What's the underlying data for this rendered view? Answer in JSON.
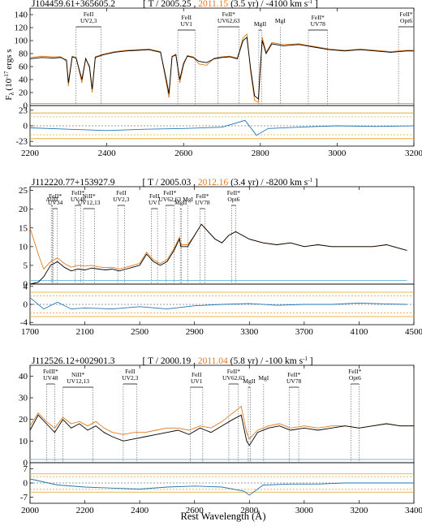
{
  "colors": {
    "spectrum_old": "#000000",
    "spectrum_new": "#e07a1f",
    "error": "#4aa8d8",
    "residual": "#1f77b4",
    "sigma": "#e0a020",
    "line_marker": "#555555"
  },
  "figure": {
    "ylabel": "F",
    "ylabel_sub": "λ",
    "ylabel_units": "(10",
    "ylabel_exp": "-17",
    "ylabel_rest": "ergs s",
    "xlabel": "Rest Wavelength (Å)"
  },
  "chart_data": [
    {
      "type": "line",
      "object": "J104459.61+365605.2",
      "title_prefix": "[ T / ",
      "epoch1": "2005.25",
      "epoch_sep": " , ",
      "epoch2": "2011.15",
      "title_suffix": " (3.5 yr) / -4100 km s",
      "title_sup": "-1",
      "title_end": " ]",
      "xlim": [
        2200,
        3200
      ],
      "xticks": [
        "2200",
        "2400",
        "2600",
        "2800",
        "3000",
        "3200"
      ],
      "ylim": [
        0,
        150
      ],
      "yticks": [
        "0",
        "20",
        "40",
        "60",
        "80",
        "100",
        "120",
        "140"
      ],
      "resid_ylim": [
        -30,
        30
      ],
      "resid_yticks": [
        "-23",
        "0",
        "23"
      ],
      "series": [
        {
          "x": [
            2200,
            2230,
            2260,
            2280,
            2295,
            2300,
            2310,
            2320,
            2335,
            2345,
            2355,
            2362,
            2370,
            2390,
            2420,
            2450,
            2480,
            2510,
            2540,
            2555,
            2562,
            2570,
            2580,
            2590,
            2600,
            2610,
            2625,
            2640,
            2660,
            2680,
            2700,
            2720,
            2740,
            2755,
            2765,
            2775,
            2785,
            2795,
            2800,
            2805,
            2815,
            2830,
            2860,
            2900,
            2940,
            2980,
            3020,
            3060,
            3100,
            3140,
            3180,
            3200
          ],
          "y": [
            72,
            74,
            73,
            74,
            70,
            35,
            75,
            73,
            40,
            72,
            60,
            25,
            74,
            78,
            82,
            84,
            85,
            86,
            82,
            40,
            18,
            75,
            78,
            40,
            65,
            76,
            74,
            68,
            66,
            72,
            74,
            75,
            72,
            100,
            105,
            55,
            15,
            10,
            60,
            100,
            80,
            95,
            92,
            94,
            90,
            86,
            84,
            86,
            84,
            82,
            84,
            84
          ]
        },
        {
          "x": [
            2200,
            2230,
            2260,
            2280,
            2295,
            2300,
            2310,
            2320,
            2335,
            2345,
            2355,
            2362,
            2370,
            2390,
            2420,
            2450,
            2480,
            2510,
            2540,
            2555,
            2562,
            2570,
            2580,
            2590,
            2600,
            2610,
            2625,
            2640,
            2660,
            2680,
            2700,
            2720,
            2740,
            2755,
            2765,
            2775,
            2785,
            2795,
            2800,
            2805,
            2815,
            2830,
            2860,
            2900,
            2940,
            2980,
            3020,
            3060,
            3100,
            3140,
            3180,
            3200
          ],
          "y": [
            74,
            76,
            75,
            75,
            68,
            30,
            76,
            74,
            35,
            73,
            58,
            20,
            75,
            79,
            83,
            85,
            86,
            87,
            83,
            35,
            12,
            76,
            79,
            35,
            62,
            77,
            75,
            64,
            62,
            73,
            75,
            76,
            73,
            104,
            110,
            50,
            8,
            5,
            55,
            105,
            82,
            97,
            94,
            95,
            91,
            87,
            85,
            87,
            85,
            83,
            85,
            85
          ]
        },
        {
          "x": [
            2200,
            3200
          ],
          "y": [
            3,
            3
          ]
        }
      ],
      "residual": {
        "x": [
          2200,
          2300,
          2400,
          2500,
          2600,
          2700,
          2760,
          2790,
          2820,
          2900,
          3000,
          3100,
          3200
        ],
        "y": [
          -3,
          -5,
          -7,
          -5,
          -4,
          -2,
          8,
          -14,
          -4,
          -2,
          0,
          -1,
          0
        ]
      },
      "sigma": 19,
      "lines": [
        {
          "label": "FeII",
          "label2": "UV2,3",
          "x1": 2320,
          "x2": 2385
        },
        {
          "label": "FeII",
          "label2": "UV1",
          "x1": 2585,
          "x2": 2630
        },
        {
          "label": "FeII*",
          "label2": "UV62,63",
          "x1": 2690,
          "x2": 2745
        },
        {
          "label": "MgII",
          "label2": "",
          "x1": 2796,
          "x2": 2803
        },
        {
          "label": "MgI",
          "label2": "",
          "x1": 2852,
          "x2": 2852
        },
        {
          "label": "FeII*",
          "label2": "UV78",
          "x1": 2925,
          "x2": 2975
        },
        {
          "label": "FeII*",
          "label2": "Opt6",
          "x1": 3160,
          "x2": 3200
        }
      ]
    },
    {
      "type": "line",
      "object": "J112220.77+153927.9",
      "title_prefix": "[ T / ",
      "epoch1": "2005.03",
      "epoch_sep": " , ",
      "epoch2": "2012.16",
      "title_suffix": " (3.4 yr) / -8200 km s",
      "title_sup": "-1",
      "title_end": " ]",
      "xlim": [
        1700,
        4500
      ],
      "xticks": [
        "1700",
        "2100",
        "2500",
        "2900",
        "3300",
        "3700",
        "4100",
        "4500"
      ],
      "ylim": [
        0,
        26
      ],
      "yticks": [
        "0",
        "5",
        "10",
        "15",
        "20",
        "25"
      ],
      "resid_ylim": [
        -4.5,
        4.5
      ],
      "resid_yticks": [
        "-4",
        "0",
        "4"
      ],
      "series": [
        {
          "x": [
            1700,
            1760,
            1800,
            1850,
            1900,
            1950,
            2000,
            2050,
            2100,
            2150,
            2200,
            2250,
            2300,
            2350,
            2400,
            2450,
            2500,
            2550,
            2600,
            2650,
            2700,
            2750,
            2790,
            2800,
            2850,
            2900,
            2950,
            3000,
            3050,
            3100,
            3150,
            3200,
            3250,
            3300,
            3400,
            3500,
            3600,
            3700,
            3800,
            3900,
            4000,
            4100,
            4200,
            4300,
            4400,
            4450
          ],
          "y": [
            0,
            0.5,
            2,
            5,
            6,
            4.5,
            3.5,
            4,
            3.8,
            4.3,
            4,
            3.8,
            4,
            3.5,
            4,
            4.5,
            5,
            8,
            6,
            5,
            6,
            9,
            12,
            10,
            10,
            13,
            16,
            14,
            12,
            11,
            13,
            14,
            13,
            12,
            11,
            10.5,
            11,
            10,
            10.5,
            10,
            10,
            10,
            10,
            10.5,
            9.5,
            9
          ]
        },
        {
          "x": [
            1700,
            1760,
            1800,
            1850,
            1900,
            1950,
            2000,
            2050,
            2100,
            2150,
            2200,
            2250,
            2300,
            2350,
            2400,
            2450,
            2500,
            2550,
            2600,
            2650,
            2700,
            2750,
            2790,
            2800,
            2850,
            2900,
            2950,
            3000,
            3050,
            3100,
            3150,
            3200,
            3250,
            3300,
            3400,
            3500,
            3600,
            3700,
            3800,
            3900,
            4000,
            4100,
            4200,
            4300,
            4400,
            4450
          ],
          "y": [
            15,
            8,
            4,
            6,
            7,
            5.5,
            4.5,
            5,
            4.8,
            5,
            4.6,
            4.4,
            4.5,
            4,
            4.5,
            5,
            5.5,
            8.5,
            6.5,
            5.5,
            6.5,
            9.5,
            12.5,
            10.5,
            10.5,
            13,
            16,
            14,
            12,
            11,
            13,
            14,
            13,
            12,
            11,
            10.5,
            11,
            10,
            10.5,
            10,
            10,
            10,
            10,
            10.5,
            9.5,
            9
          ]
        },
        {
          "x": [
            1700,
            4450
          ],
          "y": [
            1,
            1
          ]
        }
      ],
      "residual": {
        "x": [
          1700,
          1800,
          1900,
          2000,
          2100,
          2300,
          2500,
          2700,
          2900,
          3100,
          3300,
          3500,
          3700,
          3900,
          4100,
          4300,
          4450
        ],
        "y": [
          1.5,
          -1,
          0.5,
          -1,
          -0.8,
          -1,
          -0.5,
          -1,
          -0.3,
          0,
          0.2,
          -0.2,
          0,
          0,
          0.3,
          0.1,
          0
        ]
      },
      "sigma": 2.7,
      "lines": [
        {
          "label": "AlIII",
          "label2": "",
          "x1": 1855,
          "x2": 1863
        },
        {
          "label": "FeII*",
          "label2": "UV34",
          "x1": 1868,
          "x2": 1900
        },
        {
          "label": "FeII*",
          "label2": "UV48",
          "x1": 2030,
          "x2": 2070
        },
        {
          "label": "NiII*",
          "label2": "UV12,13",
          "x1": 2090,
          "x2": 2170
        },
        {
          "label": "FeII",
          "label2": "UV2,3",
          "x1": 2340,
          "x2": 2390
        },
        {
          "label": "FeII",
          "label2": "UV1",
          "x1": 2585,
          "x2": 2630
        },
        {
          "label": "FeII*",
          "label2": "UV62,63",
          "x1": 2690,
          "x2": 2750
        },
        {
          "label": "MgII",
          "label2": "",
          "x1": 2796,
          "x2": 2803
        },
        {
          "label": "MgI",
          "label2": "",
          "x1": 2852,
          "x2": 2852
        },
        {
          "label": "FeII*",
          "label2": "UV78",
          "x1": 2940,
          "x2": 2975
        },
        {
          "label": "FeII*",
          "label2": "Opt6",
          "x1": 3170,
          "x2": 3200
        }
      ]
    },
    {
      "type": "line",
      "object": "J112526.12+002901.3",
      "title_prefix": "[ T / ",
      "epoch1": "2000.19",
      "epoch_sep": " , ",
      "epoch2": "2011.04",
      "title_suffix": " (5.8 yr) / -100 km s",
      "title_sup": "-1",
      "title_end": " ]",
      "xlim": [
        2000,
        3400
      ],
      "xticks": [
        "2000",
        "2200",
        "2400",
        "2600",
        "2800",
        "3000",
        "3200",
        "3400"
      ],
      "ylim": [
        0,
        45
      ],
      "yticks": [
        "0",
        "10",
        "20",
        "30",
        "40"
      ],
      "resid_ylim": [
        -10,
        10
      ],
      "resid_yticks": [
        "-7",
        "0",
        "7"
      ],
      "series": [
        {
          "x": [
            2000,
            2030,
            2060,
            2090,
            2120,
            2150,
            2180,
            2210,
            2240,
            2270,
            2300,
            2340,
            2380,
            2420,
            2460,
            2500,
            2540,
            2580,
            2620,
            2660,
            2700,
            2740,
            2770,
            2790,
            2800,
            2830,
            2870,
            2910,
            2950,
            3000,
            3050,
            3100,
            3150,
            3200,
            3250,
            3300,
            3350,
            3400
          ],
          "y": [
            15,
            22,
            18,
            14,
            20,
            16,
            18,
            15,
            17,
            14,
            12,
            10,
            11,
            12,
            13,
            14,
            15,
            13,
            16,
            14,
            17,
            20,
            22,
            10,
            8,
            14,
            16,
            17,
            15,
            16,
            15,
            16,
            17,
            16,
            17,
            18,
            17,
            17
          ]
        },
        {
          "x": [
            2000,
            2030,
            2060,
            2090,
            2120,
            2150,
            2180,
            2210,
            2240,
            2270,
            2300,
            2340,
            2380,
            2420,
            2460,
            2500,
            2540,
            2580,
            2620,
            2660,
            2700,
            2740,
            2770,
            2790,
            2800,
            2830,
            2870,
            2910,
            2950,
            3000,
            3050,
            3100,
            3150,
            3200,
            3250,
            3300,
            3350,
            3400
          ],
          "y": [
            17,
            23,
            19,
            16,
            21,
            18,
            19,
            17,
            19,
            16,
            14,
            13,
            14,
            14,
            15,
            16,
            16,
            15,
            17,
            16,
            19,
            23,
            26,
            14,
            11,
            15,
            17,
            18,
            16,
            17,
            16,
            17,
            17,
            16,
            17,
            18,
            17,
            17
          ]
        },
        {
          "x": [
            2000,
            3400
          ],
          "y": [
            1.5,
            1.5
          ]
        }
      ],
      "residual": {
        "x": [
          2000,
          2100,
          2200,
          2300,
          2400,
          2500,
          2600,
          2700,
          2780,
          2800,
          2850,
          2950,
          3050,
          3150,
          3250,
          3400
        ],
        "y": [
          2,
          -1,
          -2,
          -2.5,
          -3,
          -2,
          -1.5,
          -2,
          -4,
          -6,
          -1,
          -0.5,
          -0.5,
          0,
          0,
          0
        ]
      },
      "sigma": 4.5,
      "lines": [
        {
          "label": "FeIII*",
          "label2": "UV48",
          "x1": 2060,
          "x2": 2090
        },
        {
          "label": "NiII*",
          "label2": "UV12,13",
          "x1": 2120,
          "x2": 2230
        },
        {
          "label": "FeII",
          "label2": "UV2,3",
          "x1": 2340,
          "x2": 2390
        },
        {
          "label": "FeII",
          "label2": "UV1",
          "x1": 2585,
          "x2": 2630
        },
        {
          "label": "FeII*",
          "label2": "UV62,63",
          "x1": 2725,
          "x2": 2760
        },
        {
          "label": "MgII",
          "label2": "",
          "x1": 2796,
          "x2": 2803
        },
        {
          "label": "MgI",
          "label2": "",
          "x1": 2852,
          "x2": 2852
        },
        {
          "label": "FeII*",
          "label2": "UV78",
          "x1": 2945,
          "x2": 2980
        },
        {
          "label": "FeII*",
          "label2": "Opt6",
          "x1": 3170,
          "x2": 3200
        }
      ]
    }
  ]
}
